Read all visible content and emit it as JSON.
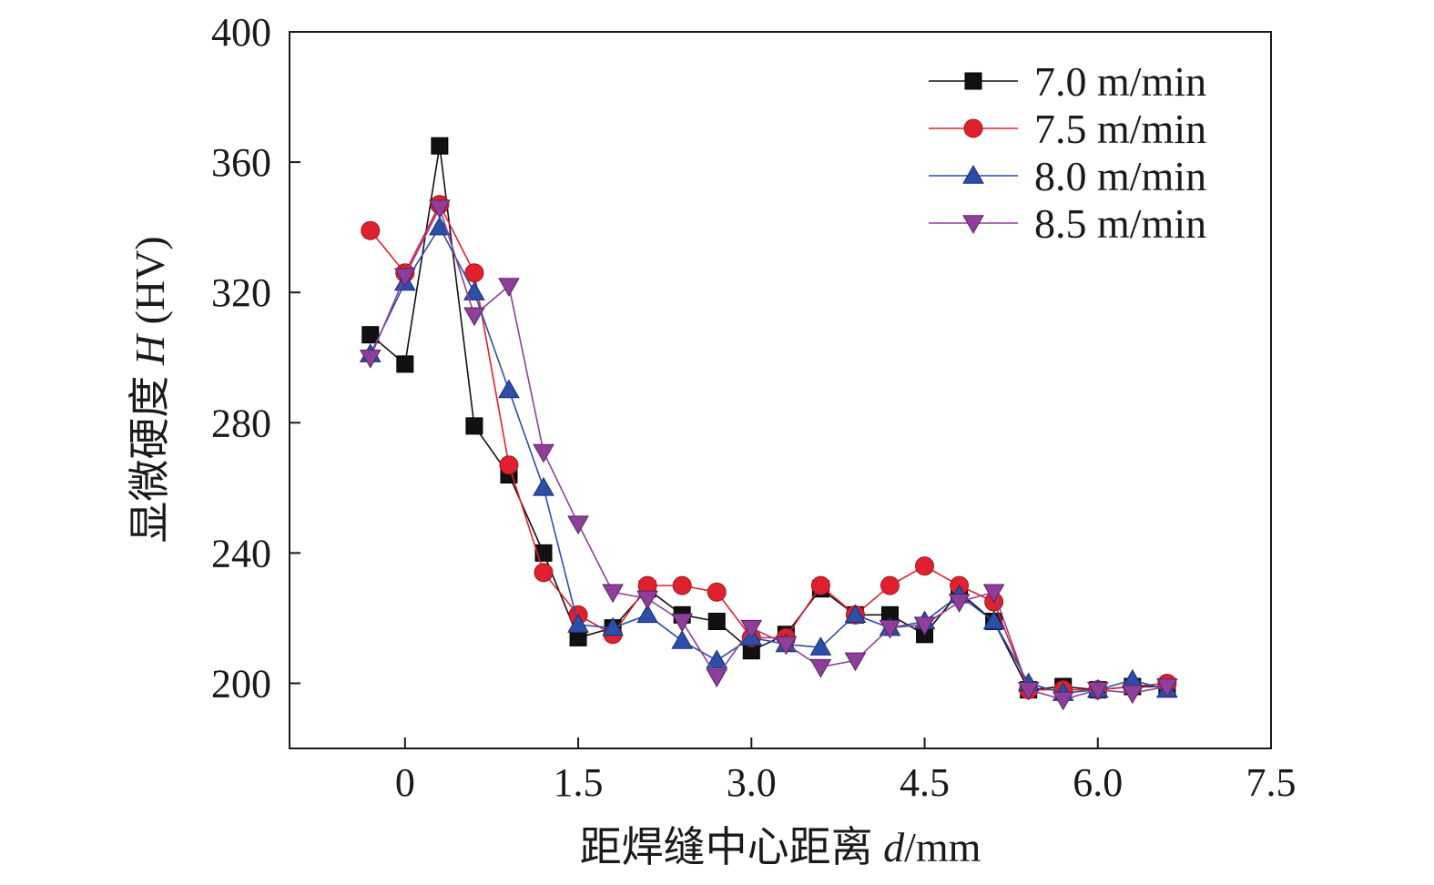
{
  "chart_data": {
    "type": "line",
    "title": "",
    "xlabel": "距焊缝中心距离 d/mm",
    "xlabel_parts": {
      "prefix": "距焊缝中心距离 ",
      "var": "d",
      "unit": "/mm"
    },
    "ylabel": "显微硬度 H (HV)",
    "ylabel_parts": {
      "prefix": "显微硬度 ",
      "var": "H",
      "unit": " (HV)"
    },
    "xlim": [
      -1.0,
      7.5
    ],
    "ylim": [
      180,
      400
    ],
    "xticks": [
      0,
      1.5,
      3.0,
      4.5,
      6.0,
      7.5
    ],
    "xtick_labels": [
      "0",
      "1.5",
      "3.0",
      "4.5",
      "6.0",
      "7.5"
    ],
    "yticks": [
      200,
      240,
      280,
      320,
      360,
      400
    ],
    "ytick_labels": [
      "200",
      "240",
      "280",
      "320",
      "360",
      "400"
    ],
    "legend_position": "top-right",
    "x": [
      -0.3,
      0.0,
      0.3,
      0.6,
      0.9,
      1.2,
      1.5,
      1.8,
      2.1,
      2.4,
      2.7,
      3.0,
      3.3,
      3.6,
      3.9,
      4.2,
      4.5,
      4.8,
      5.1,
      5.4,
      5.7,
      6.0,
      6.3,
      6.6
    ],
    "series": [
      {
        "name": "7.0 m/min",
        "marker": "square",
        "color": "#111111",
        "values": [
          307,
          298,
          365,
          279,
          264,
          240,
          214,
          217,
          229,
          221,
          219,
          210,
          215,
          229,
          221,
          221,
          215,
          228,
          219,
          198,
          199,
          198,
          199,
          199
        ]
      },
      {
        "name": "7.5 m/min",
        "marker": "circle",
        "color": "#e0202e",
        "values": [
          339,
          326,
          347,
          326,
          267,
          234,
          221,
          215,
          230,
          230,
          228,
          214,
          214,
          230,
          221,
          230,
          236,
          230,
          225,
          198,
          198,
          198,
          199,
          200
        ]
      },
      {
        "name": "8.0 m/min",
        "marker": "triangle-up",
        "color": "#2b4ea8",
        "values": [
          301,
          323,
          340,
          320,
          290,
          260,
          218,
          217,
          221,
          213,
          207,
          214,
          212,
          211,
          221,
          217,
          219,
          227,
          219,
          200,
          197,
          198,
          201,
          198
        ]
      },
      {
        "name": "8.5 m/min",
        "marker": "triangle-down",
        "color": "#8e3f9a",
        "values": [
          300,
          325,
          346,
          313,
          322,
          271,
          249,
          228,
          226,
          219,
          202,
          217,
          212,
          205,
          207,
          217,
          218,
          225,
          228,
          198,
          195,
          198,
          197,
          199
        ]
      }
    ]
  }
}
